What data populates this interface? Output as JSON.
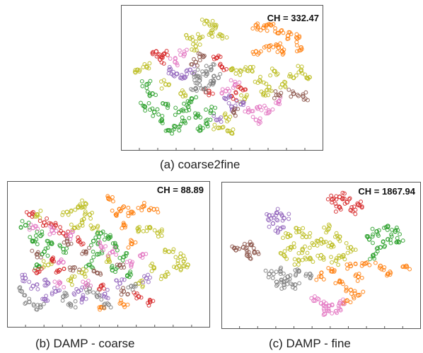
{
  "palette": {
    "orange": "#ff7f0e",
    "olive": "#bcbd22",
    "green": "#2ca02c",
    "red": "#d62728",
    "purple": "#9467bd",
    "gray": "#7f7f7f",
    "pink": "#e377c2",
    "brown": "#8c564b"
  },
  "chart_data": [
    {
      "type": "scatter",
      "caption": "(a) coarse2fine",
      "annotation": "CH = 332.47",
      "clusters": [
        {
          "color": "orange",
          "points": [
            [
              0.68,
              0.1
            ],
            [
              0.72,
              0.12
            ],
            [
              0.76,
              0.1
            ],
            [
              0.8,
              0.16
            ],
            [
              0.85,
              0.18
            ],
            [
              0.9,
              0.2
            ],
            [
              0.8,
              0.27
            ],
            [
              0.82,
              0.3
            ],
            [
              0.75,
              0.26
            ],
            [
              0.68,
              0.3
            ],
            [
              0.92,
              0.27
            ]
          ]
        },
        {
          "color": "olive",
          "points": [
            [
              0.42,
              0.07
            ],
            [
              0.46,
              0.1
            ],
            [
              0.44,
              0.16
            ],
            [
              0.5,
              0.18
            ],
            [
              0.38,
              0.2
            ],
            [
              0.33,
              0.2
            ],
            [
              0.36,
              0.26
            ],
            [
              0.05,
              0.44
            ],
            [
              0.1,
              0.42
            ],
            [
              0.55,
              0.44
            ],
            [
              0.6,
              0.45
            ],
            [
              0.65,
              0.42
            ],
            [
              0.7,
              0.52
            ],
            [
              0.75,
              0.57
            ],
            [
              0.82,
              0.55
            ],
            [
              0.88,
              0.5
            ],
            [
              0.92,
              0.44
            ],
            [
              0.95,
              0.5
            ],
            [
              0.78,
              0.45
            ],
            [
              0.72,
              0.62
            ],
            [
              0.2,
              0.55
            ],
            [
              0.28,
              0.62
            ],
            [
              0.48,
              0.88
            ],
            [
              0.52,
              0.8
            ],
            [
              0.62,
              0.66
            ],
            [
              0.55,
              0.92
            ]
          ]
        },
        {
          "color": "green",
          "points": [
            [
              0.1,
              0.55
            ],
            [
              0.13,
              0.62
            ],
            [
              0.09,
              0.72
            ],
            [
              0.14,
              0.76
            ],
            [
              0.18,
              0.82
            ],
            [
              0.22,
              0.9
            ],
            [
              0.25,
              0.87
            ],
            [
              0.3,
              0.83
            ],
            [
              0.27,
              0.76
            ],
            [
              0.2,
              0.7
            ],
            [
              0.36,
              0.8
            ],
            [
              0.44,
              0.75
            ],
            [
              0.42,
              0.85
            ],
            [
              0.32,
              0.72
            ],
            [
              0.34,
              0.66
            ],
            [
              0.38,
              0.9
            ]
          ]
        },
        {
          "color": "red",
          "points": [
            [
              0.15,
              0.3
            ],
            [
              0.19,
              0.32
            ],
            [
              0.17,
              0.36
            ],
            [
              0.47,
              0.35
            ],
            [
              0.5,
              0.42
            ],
            [
              0.43,
              0.6
            ],
            [
              0.55,
              0.64
            ],
            [
              0.6,
              0.58
            ]
          ]
        },
        {
          "color": "purple",
          "points": [
            [
              0.22,
              0.44
            ],
            [
              0.26,
              0.47
            ],
            [
              0.3,
              0.5
            ],
            [
              0.33,
              0.44
            ],
            [
              0.52,
              0.66
            ],
            [
              0.55,
              0.72
            ],
            [
              0.6,
              0.7
            ],
            [
              0.47,
              0.82
            ]
          ]
        },
        {
          "color": "gray",
          "points": [
            [
              0.35,
              0.47
            ],
            [
              0.38,
              0.52
            ],
            [
              0.42,
              0.47
            ],
            [
              0.45,
              0.54
            ],
            [
              0.41,
              0.58
            ],
            [
              0.48,
              0.5
            ],
            [
              0.36,
              0.58
            ],
            [
              0.44,
              0.42
            ]
          ]
        },
        {
          "color": "pink",
          "points": [
            [
              0.25,
              0.38
            ],
            [
              0.3,
              0.32
            ],
            [
              0.52,
              0.6
            ],
            [
              0.57,
              0.55
            ],
            [
              0.64,
              0.76
            ],
            [
              0.7,
              0.72
            ],
            [
              0.75,
              0.76
            ],
            [
              0.68,
              0.82
            ],
            [
              0.8,
              0.68
            ]
          ]
        },
        {
          "color": "brown",
          "points": [
            [
              0.36,
              0.38
            ],
            [
              0.4,
              0.34
            ],
            [
              0.8,
              0.63
            ],
            [
              0.88,
              0.62
            ],
            [
              0.93,
              0.64
            ],
            [
              0.56,
              0.76
            ]
          ]
        }
      ]
    },
    {
      "type": "scatter",
      "caption": "(b) DAMP - coarse",
      "annotation": "CH = 88.89",
      "clusters": [
        {
          "color": "orange",
          "points": [
            [
              0.5,
              0.08
            ],
            [
              0.58,
              0.14
            ],
            [
              0.54,
              0.2
            ],
            [
              0.62,
              0.18
            ],
            [
              0.68,
              0.14
            ],
            [
              0.74,
              0.16
            ],
            [
              0.58,
              0.28
            ],
            [
              0.62,
              0.42
            ],
            [
              0.46,
              0.9
            ],
            [
              0.58,
              0.88
            ]
          ]
        },
        {
          "color": "olive",
          "points": [
            [
              0.28,
              0.18
            ],
            [
              0.34,
              0.14
            ],
            [
              0.38,
              0.12
            ],
            [
              0.4,
              0.2
            ],
            [
              0.36,
              0.26
            ],
            [
              0.42,
              0.3
            ],
            [
              0.32,
              0.3
            ],
            [
              0.12,
              0.2
            ],
            [
              0.66,
              0.32
            ],
            [
              0.72,
              0.3
            ],
            [
              0.76,
              0.34
            ],
            [
              0.82,
              0.48
            ],
            [
              0.88,
              0.52
            ],
            [
              0.92,
              0.58
            ],
            [
              0.86,
              0.6
            ],
            [
              0.74,
              0.6
            ],
            [
              0.8,
              0.66
            ],
            [
              0.3,
              0.7
            ],
            [
              0.36,
              0.64
            ],
            [
              0.5,
              0.54
            ],
            [
              0.66,
              0.72
            ],
            [
              0.18,
              0.58
            ]
          ]
        },
        {
          "color": "green",
          "points": [
            [
              0.06,
              0.28
            ],
            [
              0.14,
              0.36
            ],
            [
              0.1,
              0.4
            ],
            [
              0.2,
              0.42
            ],
            [
              0.16,
              0.48
            ],
            [
              0.26,
              0.46
            ],
            [
              0.42,
              0.4
            ],
            [
              0.46,
              0.34
            ],
            [
              0.5,
              0.38
            ],
            [
              0.54,
              0.44
            ],
            [
              0.44,
              0.5
            ],
            [
              0.58,
              0.52
            ],
            [
              0.52,
              0.62
            ],
            [
              0.6,
              0.66
            ],
            [
              0.4,
              0.58
            ],
            [
              0.12,
              0.58
            ]
          ]
        },
        {
          "color": "red",
          "points": [
            [
              0.08,
              0.2
            ],
            [
              0.16,
              0.26
            ],
            [
              0.22,
              0.28
            ],
            [
              0.26,
              0.34
            ],
            [
              0.34,
              0.4
            ],
            [
              0.2,
              0.54
            ],
            [
              0.46,
              0.74
            ],
            [
              0.66,
              0.82
            ],
            [
              0.72,
              0.86
            ],
            [
              0.12,
              0.64
            ],
            [
              0.24,
              0.62
            ]
          ]
        },
        {
          "color": "purple",
          "points": [
            [
              0.06,
              0.68
            ],
            [
              0.1,
              0.74
            ],
            [
              0.18,
              0.72
            ],
            [
              0.22,
              0.78
            ],
            [
              0.34,
              0.78
            ],
            [
              0.36,
              0.84
            ],
            [
              0.56,
              0.72
            ],
            [
              0.48,
              0.8
            ],
            [
              0.7,
              0.68
            ],
            [
              0.16,
              0.84
            ]
          ]
        },
        {
          "color": "gray",
          "points": [
            [
              0.04,
              0.78
            ],
            [
              0.08,
              0.86
            ],
            [
              0.14,
              0.9
            ],
            [
              0.26,
              0.82
            ],
            [
              0.4,
              0.76
            ],
            [
              0.44,
              0.82
            ],
            [
              0.5,
              0.88
            ],
            [
              0.62,
              0.74
            ],
            [
              0.3,
              0.88
            ]
          ]
        },
        {
          "color": "pink",
          "points": [
            [
              0.1,
              0.3
            ],
            [
              0.2,
              0.32
            ],
            [
              0.3,
              0.36
            ],
            [
              0.46,
              0.44
            ],
            [
              0.52,
              0.48
            ],
            [
              0.62,
              0.58
            ],
            [
              0.68,
              0.5
            ],
            [
              0.26,
              0.56
            ],
            [
              0.24,
              0.72
            ],
            [
              0.38,
              0.72
            ]
          ]
        },
        {
          "color": "brown",
          "points": [
            [
              0.12,
              0.5
            ],
            [
              0.28,
              0.4
            ],
            [
              0.38,
              0.48
            ],
            [
              0.44,
              0.64
            ],
            [
              0.56,
              0.58
            ],
            [
              0.58,
              0.78
            ],
            [
              0.32,
              0.6
            ]
          ]
        }
      ]
    },
    {
      "type": "scatter",
      "caption": "(c) DAMP - fine",
      "annotation": "CH = 1867.94",
      "clusters": [
        {
          "color": "orange",
          "points": [
            [
              0.5,
              0.66
            ],
            [
              0.56,
              0.62
            ],
            [
              0.6,
              0.7
            ],
            [
              0.66,
              0.58
            ],
            [
              0.7,
              0.66
            ],
            [
              0.66,
              0.76
            ],
            [
              0.64,
              0.84
            ],
            [
              0.7,
              0.8
            ],
            [
              0.74,
              0.56
            ],
            [
              0.82,
              0.58
            ],
            [
              0.86,
              0.64
            ],
            [
              0.96,
              0.58
            ]
          ]
        },
        {
          "color": "olive",
          "points": [
            [
              0.32,
              0.36
            ],
            [
              0.38,
              0.32
            ],
            [
              0.42,
              0.36
            ],
            [
              0.34,
              0.44
            ],
            [
              0.4,
              0.46
            ],
            [
              0.46,
              0.42
            ],
            [
              0.5,
              0.38
            ],
            [
              0.56,
              0.42
            ],
            [
              0.6,
              0.36
            ],
            [
              0.54,
              0.3
            ],
            [
              0.44,
              0.52
            ],
            [
              0.5,
              0.5
            ],
            [
              0.62,
              0.5
            ],
            [
              0.66,
              0.44
            ],
            [
              0.3,
              0.5
            ],
            [
              0.38,
              0.54
            ],
            [
              0.58,
              0.54
            ]
          ]
        },
        {
          "color": "green",
          "points": [
            [
              0.76,
              0.38
            ],
            [
              0.8,
              0.32
            ],
            [
              0.86,
              0.28
            ],
            [
              0.9,
              0.32
            ],
            [
              0.86,
              0.38
            ],
            [
              0.82,
              0.44
            ],
            [
              0.78,
              0.5
            ],
            [
              0.92,
              0.4
            ]
          ]
        },
        {
          "color": "red",
          "points": [
            [
              0.56,
              0.08
            ],
            [
              0.6,
              0.06
            ],
            [
              0.64,
              0.1
            ],
            [
              0.66,
              0.16
            ],
            [
              0.6,
              0.14
            ],
            [
              0.7,
              0.12
            ]
          ]
        },
        {
          "color": "purple",
          "points": [
            [
              0.22,
              0.2
            ],
            [
              0.26,
              0.18
            ],
            [
              0.3,
              0.22
            ],
            [
              0.24,
              0.26
            ],
            [
              0.28,
              0.3
            ]
          ]
        },
        {
          "color": "gray",
          "points": [
            [
              0.22,
              0.64
            ],
            [
              0.28,
              0.62
            ],
            [
              0.32,
              0.66
            ],
            [
              0.38,
              0.62
            ],
            [
              0.44,
              0.64
            ],
            [
              0.3,
              0.72
            ],
            [
              0.36,
              0.72
            ],
            [
              0.26,
              0.7
            ]
          ]
        },
        {
          "color": "pink",
          "points": [
            [
              0.46,
              0.84
            ],
            [
              0.5,
              0.86
            ],
            [
              0.54,
              0.88
            ],
            [
              0.58,
              0.92
            ],
            [
              0.52,
              0.94
            ],
            [
              0.6,
              0.86
            ]
          ]
        },
        {
          "color": "brown",
          "points": [
            [
              0.04,
              0.46
            ],
            [
              0.08,
              0.44
            ],
            [
              0.12,
              0.42
            ],
            [
              0.14,
              0.48
            ],
            [
              0.1,
              0.5
            ]
          ]
        }
      ]
    }
  ]
}
